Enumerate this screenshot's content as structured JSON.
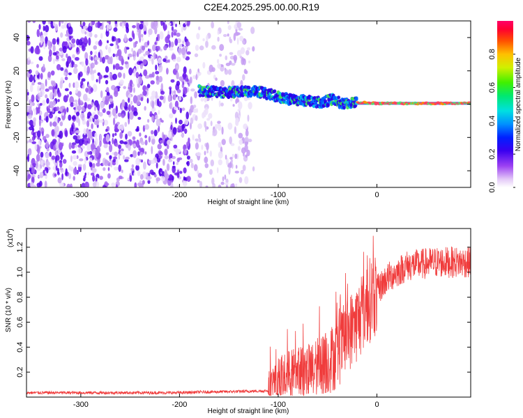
{
  "title": "C2E4.2025.295.00.00.R19",
  "chart_data": [
    {
      "type": "heatmap",
      "name": "spectrogram",
      "xlabel": "Height of straight line (km)",
      "ylabel": "Frequency (Hz)",
      "xlim": [
        -355,
        95
      ],
      "ylim": [
        -50,
        50
      ],
      "xticks": [
        -300,
        -200,
        -100,
        0
      ],
      "yticks": [
        -40,
        -20,
        0,
        20,
        40
      ],
      "noise_dense_until_km": -190,
      "noise_sparse_until_km": -125,
      "signal_track": [
        {
          "x": -180,
          "y": 8
        },
        {
          "x": -150,
          "y": 7
        },
        {
          "x": -125,
          "y": 8
        },
        {
          "x": -110,
          "y": 6
        },
        {
          "x": -90,
          "y": 3
        },
        {
          "x": -70,
          "y": 2
        },
        {
          "x": -55,
          "y": 1
        },
        {
          "x": -45,
          "y": 3
        },
        {
          "x": -35,
          "y": 0
        },
        {
          "x": -25,
          "y": 1
        },
        {
          "x": -15,
          "y": 1
        },
        {
          "x": 0,
          "y": 0.5
        },
        {
          "x": 20,
          "y": 0.5
        },
        {
          "x": 50,
          "y": 0.5
        },
        {
          "x": 95,
          "y": 0.5
        }
      ],
      "colorbar": {
        "label": "Normalized spectral amplitude",
        "range": [
          0,
          1
        ],
        "ticks": [
          0.0,
          0.2,
          0.4,
          0.6,
          0.8
        ],
        "tick_labels": [
          "0.0",
          "0.2",
          "0.4",
          "0.6",
          "0.8"
        ]
      }
    },
    {
      "type": "line",
      "name": "snr",
      "xlabel": "Height of straight line (km)",
      "ylabel": "SNR (10 * v/v)",
      "y_multiplier_label": "(x10",
      "y_multiplier_exponent": "4",
      "y_multiplier_suffix": ")",
      "xlim": [
        -355,
        95
      ],
      "ylim": [
        0,
        1.35
      ],
      "xticks": [
        -300,
        -200,
        -100,
        0
      ],
      "yticks": [
        0.2,
        0.4,
        0.6,
        0.8,
        1.0,
        1.2
      ],
      "ytick_labels": [
        "0.2",
        "0.4",
        "0.6",
        "0.8",
        "1.0",
        "1.2"
      ],
      "color": "#f03c3c",
      "envelope": [
        {
          "x": -355,
          "y": 0.035
        },
        {
          "x": -200,
          "y": 0.035
        },
        {
          "x": -180,
          "y": 0.04
        },
        {
          "x": -140,
          "y": 0.045
        },
        {
          "x": -110,
          "y": 0.05
        },
        {
          "x": -100,
          "y": 0.12
        },
        {
          "x": -90,
          "y": 0.18
        },
        {
          "x": -70,
          "y": 0.2
        },
        {
          "x": -55,
          "y": 0.25
        },
        {
          "x": -40,
          "y": 0.35
        },
        {
          "x": -30,
          "y": 0.5
        },
        {
          "x": -20,
          "y": 0.6
        },
        {
          "x": -10,
          "y": 0.75
        },
        {
          "x": 0,
          "y": 0.85
        },
        {
          "x": 10,
          "y": 0.95
        },
        {
          "x": 30,
          "y": 1.05
        },
        {
          "x": 60,
          "y": 1.08
        },
        {
          "x": 95,
          "y": 1.08
        }
      ]
    }
  ]
}
